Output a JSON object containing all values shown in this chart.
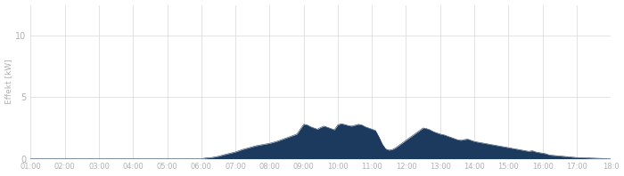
{
  "ylabel": "Effekt [kW]",
  "yticks": [
    0,
    5,
    10
  ],
  "ylim": [
    0,
    12.5
  ],
  "xtick_labels": [
    "01:00",
    "02:00",
    "03:00",
    "04:00",
    "05:00",
    "06:00",
    "07:00",
    "08:00",
    "09:00",
    "10:00",
    "11:00",
    "12:00",
    "13:00",
    "14:00",
    "15:00",
    "16:00",
    "17:00",
    "18:0"
  ],
  "fill_color": "#1b3a5e",
  "line_color": "#1b3a5e",
  "background_color": "#ffffff",
  "grid_color": "#d8d8d8",
  "tick_label_color": "#b0b0b0",
  "ylabel_color": "#b0b0b0",
  "key_times_hours": [
    1.0,
    6.0,
    6.1,
    6.3,
    6.5,
    6.7,
    7.0,
    7.2,
    7.4,
    7.6,
    7.8,
    8.0,
    8.2,
    8.4,
    8.6,
    8.8,
    9.0,
    9.1,
    9.2,
    9.3,
    9.4,
    9.5,
    9.6,
    9.7,
    9.8,
    9.9,
    10.0,
    10.1,
    10.2,
    10.3,
    10.4,
    10.5,
    10.6,
    10.7,
    10.8,
    10.9,
    11.0,
    11.1,
    11.2,
    11.3,
    11.4,
    11.5,
    11.6,
    11.7,
    11.8,
    11.9,
    12.0,
    12.1,
    12.2,
    12.3,
    12.4,
    12.5,
    12.6,
    12.7,
    12.8,
    12.9,
    13.0,
    13.1,
    13.2,
    13.3,
    13.4,
    13.5,
    13.6,
    13.7,
    13.8,
    13.9,
    14.0,
    14.2,
    14.4,
    14.5,
    14.6,
    14.7,
    14.8,
    14.9,
    15.0,
    15.1,
    15.2,
    15.3,
    15.4,
    15.5,
    15.6,
    15.7,
    15.8,
    15.9,
    16.0,
    16.1,
    16.2,
    17.0,
    18.0
  ],
  "key_values": [
    0.0,
    0.0,
    0.05,
    0.1,
    0.2,
    0.35,
    0.55,
    0.75,
    0.9,
    1.05,
    1.15,
    1.25,
    1.4,
    1.6,
    1.8,
    2.0,
    2.8,
    2.75,
    2.6,
    2.5,
    2.4,
    2.55,
    2.65,
    2.55,
    2.45,
    2.35,
    2.75,
    2.85,
    2.78,
    2.7,
    2.65,
    2.72,
    2.8,
    2.75,
    2.6,
    2.5,
    2.4,
    2.3,
    1.8,
    1.2,
    0.8,
    0.7,
    0.75,
    0.9,
    1.1,
    1.3,
    1.5,
    1.7,
    1.9,
    2.1,
    2.3,
    2.5,
    2.45,
    2.35,
    2.2,
    2.1,
    2.0,
    1.95,
    1.85,
    1.75,
    1.65,
    1.55,
    1.5,
    1.55,
    1.6,
    1.5,
    1.4,
    1.3,
    1.2,
    1.15,
    1.1,
    1.05,
    1.0,
    0.95,
    0.9,
    0.85,
    0.8,
    0.75,
    0.7,
    0.65,
    0.6,
    0.65,
    0.55,
    0.5,
    0.45,
    0.4,
    0.3,
    0.1,
    0.0
  ]
}
